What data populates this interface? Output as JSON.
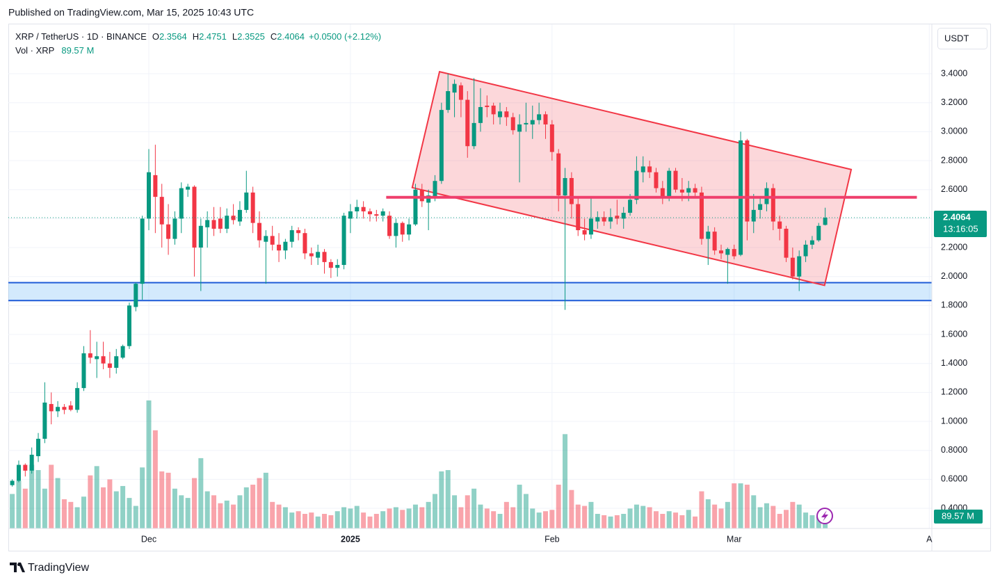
{
  "published": "Published on TradingView.com, Mar 15, 2025 10:43 UTC",
  "footer": {
    "brand": "TradingView"
  },
  "currency_button": "USDT",
  "chart_data": {
    "type": "candlestick",
    "header": {
      "symbol": "XRP / TetherUS · 1D · BINANCE",
      "ohlc_labels": [
        "O",
        "H",
        "L",
        "C"
      ],
      "change": "+0.0500 (+2.12%)",
      "volume_title": "Vol · XRP"
    },
    "countdown": "13:16:05",
    "up_color": "#089981",
    "down_color": "#f23645",
    "xlim": [
      -0.6,
      141.4
    ],
    "xticks": [
      {
        "value": 21,
        "label": "Dec"
      },
      {
        "value": 52,
        "label": "2025"
      },
      {
        "value": 83,
        "label": "Feb"
      },
      {
        "value": 111,
        "label": "Mar"
      },
      {
        "value": 141,
        "label": "A"
      }
    ],
    "ylim": [
      0.261,
      3.741
    ],
    "yticks": [
      {
        "value": 3.4,
        "label": "3.4000"
      },
      {
        "value": 3.2,
        "label": "3.2000"
      },
      {
        "value": 3.0,
        "label": "3.0000"
      },
      {
        "value": 2.8,
        "label": "2.8000"
      },
      {
        "value": 2.6,
        "label": "2.6000"
      },
      {
        "value": 2.4,
        "label": "2.4000"
      },
      {
        "value": 2.2,
        "label": "2.2000"
      },
      {
        "value": 2.0,
        "label": "2.0000"
      },
      {
        "value": 1.8,
        "label": "1.8000"
      },
      {
        "value": 1.6,
        "label": "1.6000"
      },
      {
        "value": 1.4,
        "label": "1.4000"
      },
      {
        "value": 1.2,
        "label": "1.2000"
      },
      {
        "value": 1.0,
        "label": "1.0000"
      },
      {
        "value": 0.8,
        "label": "0.8000"
      },
      {
        "value": 0.6,
        "label": "0.6000"
      },
      {
        "value": 0.4,
        "label": "0.4000"
      }
    ],
    "volume_ylim": [
      0,
      3800
    ],
    "grid": true,
    "open": [
      0.56,
      0.59,
      0.7,
      0.66,
      0.76,
      0.88,
      1.12,
      1.07,
      1.1,
      1.11,
      1.08,
      1.23,
      1.47,
      1.43,
      1.45,
      1.4,
      1.37,
      1.44,
      1.52,
      1.79,
      1.95,
      2.4,
      2.7,
      2.55,
      2.36,
      2.26,
      2.4,
      2.6,
      2.62,
      2.2,
      2.34,
      2.39,
      2.4,
      2.33,
      2.42,
      2.38,
      2.46,
      2.58,
      2.37,
      2.24,
      2.28,
      2.22,
      2.18,
      2.24,
      2.32,
      2.3,
      2.16,
      2.13,
      2.17,
      2.1,
      2.06,
      2.08,
      2.4,
      2.45,
      2.48,
      2.45,
      2.43,
      2.42,
      2.42,
      2.28,
      2.37,
      2.29,
      2.36,
      2.6,
      2.51,
      2.55,
      2.66,
      3.15,
      3.27,
      3.32,
      3.22,
      2.9,
      3.06,
      3.18,
      3.18,
      3.1,
      3.14,
      3.1,
      3.0,
      3.05,
      3.05,
      3.08,
      3.12,
      3.05,
      2.85,
      2.56,
      2.68,
      2.5,
      2.32,
      2.29,
      2.38,
      2.41,
      2.38,
      2.42,
      2.4,
      2.44,
      2.53,
      2.72,
      2.76,
      2.72,
      2.61,
      2.55,
      2.73,
      2.6,
      2.58,
      2.61,
      2.58,
      2.26,
      2.31,
      2.18,
      2.15,
      2.19,
      2.15,
      2.94,
      2.38,
      2.46,
      2.5,
      2.61,
      2.38,
      2.33,
      2.13,
      2.0,
      2.14,
      2.22,
      2.25,
      2.3564
    ],
    "high": [
      0.6,
      0.73,
      0.71,
      0.82,
      0.92,
      1.27,
      1.2,
      1.14,
      1.12,
      1.14,
      1.27,
      1.52,
      1.63,
      1.55,
      1.55,
      1.48,
      1.5,
      1.53,
      1.82,
      1.96,
      2.42,
      2.88,
      2.91,
      2.64,
      2.5,
      2.45,
      2.65,
      2.64,
      2.63,
      2.4,
      2.45,
      2.48,
      2.48,
      2.47,
      2.5,
      2.52,
      2.73,
      2.62,
      2.45,
      2.32,
      2.35,
      2.3,
      2.26,
      2.35,
      2.34,
      2.33,
      2.2,
      2.22,
      2.19,
      2.12,
      2.12,
      2.44,
      2.5,
      2.53,
      2.52,
      2.47,
      2.46,
      2.47,
      2.45,
      2.4,
      2.38,
      2.4,
      2.64,
      2.64,
      2.6,
      2.7,
      3.2,
      3.4,
      3.36,
      3.34,
      3.28,
      3.37,
      3.3,
      3.25,
      3.2,
      3.2,
      3.17,
      3.13,
      3.12,
      3.2,
      3.18,
      3.2,
      3.14,
      3.08,
      2.88,
      2.75,
      2.72,
      2.55,
      2.4,
      2.55,
      2.45,
      2.45,
      2.47,
      2.53,
      2.48,
      2.57,
      2.83,
      2.83,
      2.8,
      2.75,
      2.66,
      2.75,
      2.75,
      2.68,
      2.66,
      2.64,
      2.62,
      2.35,
      2.34,
      2.22,
      2.2,
      2.22,
      3.0,
      2.95,
      2.57,
      2.55,
      2.65,
      2.64,
      2.42,
      2.35,
      2.2,
      2.18,
      2.25,
      2.28,
      2.37,
      2.4751
    ],
    "low": [
      0.55,
      0.58,
      0.62,
      0.64,
      0.72,
      0.85,
      0.98,
      1.03,
      1.05,
      1.07,
      1.06,
      1.21,
      1.4,
      1.3,
      1.36,
      1.3,
      1.33,
      1.43,
      1.5,
      1.76,
      1.84,
      2.32,
      2.3,
      2.2,
      2.15,
      2.22,
      2.3,
      2.55,
      2.0,
      1.9,
      2.2,
      2.28,
      2.3,
      2.3,
      2.36,
      2.35,
      2.44,
      2.3,
      2.2,
      1.95,
      2.18,
      2.1,
      2.12,
      2.2,
      2.25,
      2.12,
      2.08,
      2.08,
      2.02,
      1.99,
      2.0,
      2.05,
      2.3,
      2.4,
      2.4,
      2.38,
      2.38,
      2.38,
      2.26,
      2.2,
      2.24,
      2.25,
      2.35,
      2.48,
      2.32,
      2.52,
      2.64,
      3.13,
      3.1,
      3.1,
      2.82,
      2.88,
      3.0,
      3.1,
      3.05,
      3.05,
      3.04,
      2.98,
      2.65,
      3.0,
      2.95,
      3.05,
      2.95,
      2.8,
      2.45,
      1.77,
      2.4,
      2.28,
      2.25,
      2.26,
      2.33,
      2.35,
      2.33,
      2.36,
      2.33,
      2.42,
      2.5,
      2.65,
      2.68,
      2.58,
      2.5,
      2.52,
      2.58,
      2.52,
      2.52,
      2.54,
      2.22,
      2.08,
      2.15,
      2.12,
      1.95,
      2.12,
      2.14,
      2.25,
      2.3,
      2.4,
      2.45,
      2.32,
      2.25,
      2.1,
      1.98,
      1.9,
      2.1,
      2.19,
      2.24,
      2.3525
    ],
    "close": [
      0.59,
      0.7,
      0.66,
      0.77,
      0.88,
      1.13,
      1.07,
      1.1,
      1.08,
      1.08,
      1.23,
      1.47,
      1.44,
      1.45,
      1.4,
      1.37,
      1.45,
      1.52,
      1.8,
      1.95,
      2.4,
      2.72,
      2.55,
      2.36,
      2.26,
      2.4,
      2.61,
      2.62,
      2.2,
      2.35,
      2.39,
      2.33,
      2.33,
      2.42,
      2.39,
      2.46,
      2.58,
      2.37,
      2.25,
      2.28,
      2.22,
      2.18,
      2.24,
      2.32,
      2.3,
      2.16,
      2.14,
      2.17,
      2.1,
      2.06,
      2.08,
      2.42,
      2.45,
      2.48,
      2.45,
      2.43,
      2.42,
      2.45,
      2.28,
      2.37,
      2.29,
      2.36,
      2.6,
      2.52,
      2.56,
      2.66,
      3.15,
      3.28,
      3.33,
      3.22,
      2.9,
      3.06,
      3.17,
      3.17,
      3.12,
      3.14,
      3.1,
      3.01,
      3.05,
      3.06,
      3.08,
      3.12,
      3.05,
      2.86,
      2.56,
      2.68,
      2.5,
      2.32,
      2.29,
      2.4,
      2.41,
      2.38,
      2.41,
      2.4,
      2.44,
      2.53,
      2.73,
      2.76,
      2.72,
      2.61,
      2.55,
      2.73,
      2.6,
      2.58,
      2.61,
      2.58,
      2.26,
      2.31,
      2.18,
      2.16,
      2.19,
      2.14,
      2.94,
      2.38,
      2.46,
      2.5,
      2.61,
      2.38,
      2.33,
      2.13,
      2.0,
      2.14,
      2.22,
      2.25,
      2.35,
      2.4064
    ],
    "volume": [
      260,
      360,
      300,
      480,
      440,
      300,
      480,
      380,
      220,
      200,
      160,
      240,
      400,
      470,
      310,
      370,
      280,
      320,
      230,
      170,
      460,
      965,
      740,
      430,
      420,
      300,
      250,
      230,
      380,
      530,
      280,
      250,
      190,
      210,
      180,
      250,
      310,
      330,
      380,
      420,
      200,
      180,
      160,
      120,
      130,
      110,
      120,
      90,
      110,
      100,
      130,
      160,
      150,
      170,
      120,
      90,
      110,
      130,
      150,
      160,
      140,
      150,
      180,
      160,
      200,
      260,
      430,
      440,
      250,
      160,
      250,
      300,
      180,
      150,
      130,
      110,
      200,
      160,
      330,
      260,
      150,
      120,
      130,
      140,
      330,
      711,
      290,
      180,
      170,
      200,
      110,
      100,
      90,
      100,
      110,
      150,
      180,
      170,
      160,
      130,
      110,
      130,
      120,
      100,
      140,
      90,
      280,
      220,
      180,
      150,
      200,
      340,
      340,
      330,
      250,
      160,
      190,
      170,
      110,
      140,
      200,
      180,
      120,
      100,
      90,
      89.57
    ],
    "volume_value_label": "89.57 M",
    "drawings": {
      "support_zone": [
        1.834,
        1.958
      ],
      "resistance": {
        "price": 2.547,
        "from": 57.5,
        "to": 139.1
      },
      "channel": [
        [
          65.7,
          3.414
        ],
        [
          129.0,
          2.739
        ],
        [
          124.9,
          1.939
        ],
        [
          61.5,
          2.614
        ]
      ]
    }
  }
}
